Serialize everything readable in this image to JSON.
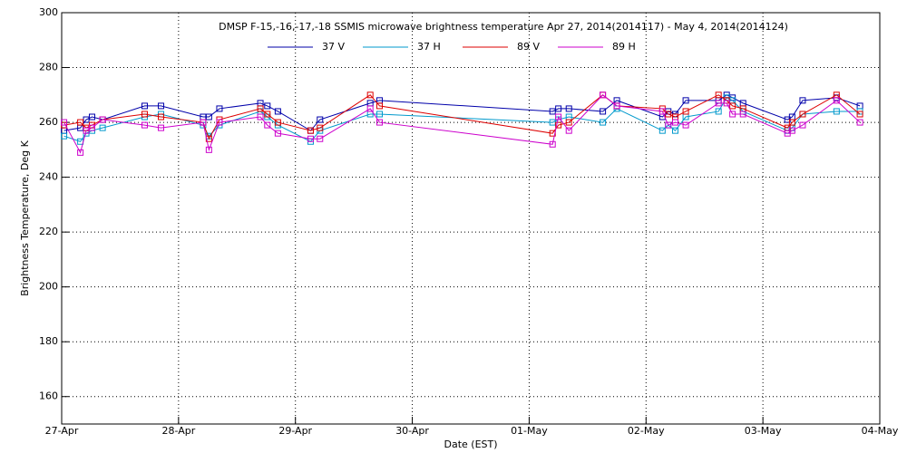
{
  "chart_data": {
    "type": "line",
    "title": "DMSP F-15,-16,-17,-18 SSMIS microwave brightness temperature Apr 27, 2014(2014117) - May  4, 2014(2014124)",
    "xlabel": "Date (EST)",
    "ylabel": "Brightness Temperature, Deg K",
    "x": [
      0.02,
      0.16,
      0.21,
      0.26,
      0.35,
      0.71,
      0.85,
      1.21,
      1.26,
      1.35,
      1.7,
      1.76,
      1.85,
      2.13,
      2.21,
      2.64,
      2.72,
      4.2,
      4.25,
      4.34,
      4.63,
      4.75,
      5.14,
      5.19,
      5.25,
      5.34,
      5.62,
      5.69,
      5.74,
      5.83,
      6.21,
      6.25,
      6.34,
      6.63,
      6.83
    ],
    "series": [
      {
        "name": "37 V",
        "color": "#0000aa",
        "values": [
          257,
          258,
          261,
          262,
          261,
          266,
          266,
          262,
          262,
          265,
          267,
          266,
          264,
          257,
          261,
          267,
          268,
          264,
          265,
          265,
          264,
          268,
          262,
          264,
          263,
          268,
          268,
          270,
          269,
          267,
          261,
          262,
          268,
          269,
          266
        ]
      },
      {
        "name": "37 H",
        "color": "#0099cc",
        "values": [
          255,
          253,
          256,
          257,
          258,
          262,
          263,
          259,
          255,
          259,
          264,
          262,
          259,
          253,
          257,
          263,
          263,
          260,
          261,
          262,
          260,
          265,
          257,
          259,
          257,
          262,
          264,
          269,
          268,
          264,
          257,
          258,
          263,
          264,
          264
        ]
      },
      {
        "name": "89 V",
        "color": "#dd0000",
        "values": [
          259,
          260,
          258,
          259,
          261,
          263,
          262,
          260,
          254,
          261,
          265,
          263,
          260,
          257,
          258,
          270,
          266,
          256,
          259,
          260,
          270,
          266,
          265,
          263,
          262,
          264,
          270,
          268,
          266,
          265,
          258,
          260,
          263,
          270,
          263
        ]
      },
      {
        "name": "89 H",
        "color": "#cc00cc",
        "values": [
          260,
          249,
          257,
          258,
          261,
          259,
          258,
          260,
          250,
          260,
          262,
          259,
          256,
          254,
          254,
          265,
          260,
          252,
          262,
          257,
          270,
          266,
          264,
          259,
          260,
          259,
          267,
          267,
          263,
          263,
          256,
          257,
          259,
          268,
          260
        ]
      }
    ],
    "xlim": [
      0,
      7
    ],
    "xticks": [
      {
        "value": 0,
        "label": "27-Apr"
      },
      {
        "value": 1,
        "label": "28-Apr"
      },
      {
        "value": 2,
        "label": "29-Apr"
      },
      {
        "value": 3,
        "label": "30-Apr"
      },
      {
        "value": 4,
        "label": "01-May"
      },
      {
        "value": 5,
        "label": "02-May"
      },
      {
        "value": 6,
        "label": "03-May"
      },
      {
        "value": 7,
        "label": "04-May"
      }
    ],
    "ylim": [
      150,
      300
    ],
    "yticks": [
      160,
      180,
      200,
      220,
      240,
      260,
      280,
      300
    ],
    "grid": true
  }
}
